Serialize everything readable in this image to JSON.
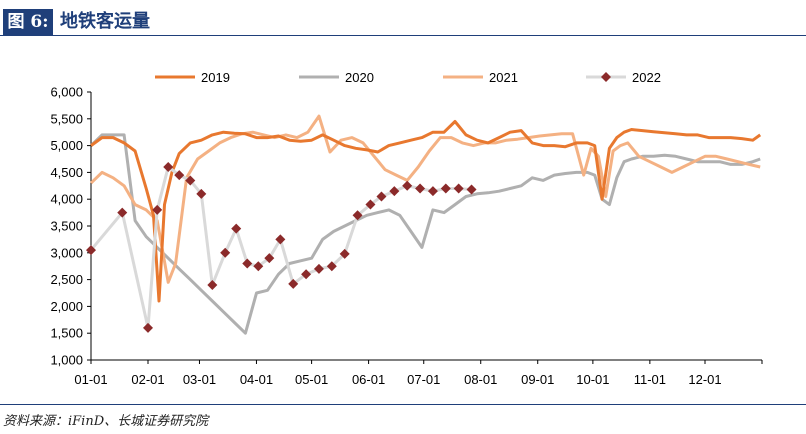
{
  "header": {
    "figure_label": "图 6:",
    "title": "地铁客运量"
  },
  "source": "资料来源：iFinD、长城证券研究院",
  "colors": {
    "2019": "#e8782f",
    "2020": "#b0b0b0",
    "2021": "#f4b183",
    "2022_line": "#d9d9d9",
    "2022_marker": "#8b2a2a",
    "header": "#1f3f7a"
  },
  "chart_data": {
    "type": "line",
    "title": "",
    "xlabel": "",
    "ylabel": "",
    "ylim": [
      1000,
      6000
    ],
    "xlim": [
      1,
      366
    ],
    "y_ticks": [
      1000,
      1500,
      2000,
      2500,
      3000,
      3500,
      4000,
      4500,
      5000,
      5500,
      6000
    ],
    "y_tick_labels": [
      "1,000",
      "1,500",
      "2,000",
      "2,500",
      "3,000",
      "3,500",
      "4,000",
      "4,500",
      "5,000",
      "5,500",
      "6,000"
    ],
    "x_ticks": [
      1,
      32,
      60,
      91,
      121,
      152,
      182,
      213,
      244,
      274,
      305,
      335
    ],
    "x_tick_labels": [
      "01-01",
      "02-01",
      "03-01",
      "04-01",
      "05-01",
      "06-01",
      "07-01",
      "08-01",
      "09-01",
      "10-01",
      "11-01",
      "12-01"
    ],
    "legend_position": "top",
    "series": [
      {
        "name": "2019",
        "marker": false,
        "x": [
          1,
          7,
          13,
          19,
          25,
          31,
          35,
          38,
          41,
          45,
          49,
          55,
          61,
          67,
          73,
          79,
          85,
          91,
          97,
          103,
          109,
          115,
          121,
          127,
          133,
          139,
          145,
          151,
          157,
          163,
          169,
          175,
          181,
          187,
          193,
          199,
          205,
          211,
          217,
          223,
          229,
          235,
          241,
          247,
          253,
          259,
          265,
          271,
          275,
          279,
          283,
          287,
          291,
          295,
          301,
          307,
          313,
          319,
          325,
          331,
          337,
          343,
          349,
          355,
          361,
          365
        ],
        "y": [
          5000,
          5150,
          5150,
          5050,
          4900,
          4200,
          3700,
          2100,
          3900,
          4500,
          4850,
          5050,
          5100,
          5200,
          5250,
          5230,
          5220,
          5150,
          5150,
          5180,
          5100,
          5080,
          5100,
          5200,
          5100,
          5000,
          4950,
          4920,
          4880,
          5000,
          5050,
          5100,
          5150,
          5250,
          5250,
          5450,
          5200,
          5100,
          5050,
          5150,
          5250,
          5280,
          5050,
          5000,
          5000,
          4980,
          5050,
          5050,
          5000,
          4000,
          4950,
          5150,
          5250,
          5300,
          5280,
          5260,
          5240,
          5220,
          5200,
          5200,
          5150,
          5150,
          5150,
          5130,
          5100,
          5200
        ]
      },
      {
        "name": "2020",
        "marker": false,
        "x": [
          1,
          7,
          13,
          19,
          25,
          31,
          37,
          43,
          49,
          55,
          61,
          67,
          73,
          79,
          85,
          91,
          97,
          103,
          109,
          115,
          121,
          127,
          133,
          139,
          145,
          151,
          157,
          163,
          169,
          175,
          181,
          187,
          193,
          199,
          205,
          211,
          217,
          223,
          229,
          235,
          241,
          247,
          253,
          259,
          265,
          271,
          275,
          279,
          283,
          287,
          291,
          295,
          301,
          307,
          313,
          319,
          325,
          331,
          337,
          343,
          349,
          355,
          361,
          365
        ],
        "y": [
          5000,
          5200,
          5200,
          5200,
          3600,
          3300,
          3100,
          2900,
          2700,
          2500,
          2300,
          2100,
          1900,
          1700,
          1500,
          2250,
          2300,
          2600,
          2800,
          2850,
          2900,
          3250,
          3400,
          3500,
          3600,
          3700,
          3750,
          3800,
          3700,
          3400,
          3100,
          3800,
          3750,
          3900,
          4050,
          4100,
          4120,
          4150,
          4200,
          4250,
          4400,
          4350,
          4450,
          4480,
          4500,
          4500,
          4450,
          4000,
          3900,
          4400,
          4700,
          4750,
          4800,
          4800,
          4820,
          4800,
          4750,
          4700,
          4700,
          4700,
          4650,
          4650,
          4700,
          4750
        ]
      },
      {
        "name": "2021",
        "marker": false,
        "x": [
          1,
          7,
          13,
          19,
          25,
          31,
          37,
          43,
          47,
          53,
          59,
          65,
          71,
          77,
          83,
          89,
          95,
          101,
          107,
          113,
          119,
          125,
          131,
          137,
          143,
          149,
          155,
          161,
          167,
          173,
          179,
          185,
          191,
          197,
          203,
          209,
          215,
          221,
          227,
          233,
          239,
          245,
          251,
          257,
          263,
          269,
          273,
          277,
          281,
          285,
          289,
          293,
          299,
          305,
          311,
          317,
          323,
          329,
          335,
          341,
          347,
          353,
          359,
          365
        ],
        "y": [
          4300,
          4500,
          4400,
          4250,
          3900,
          3800,
          3600,
          2450,
          2800,
          4400,
          4750,
          4900,
          5050,
          5150,
          5220,
          5250,
          5200,
          5150,
          5200,
          5150,
          5250,
          5550,
          4880,
          5100,
          5150,
          5050,
          4800,
          4550,
          4450,
          4350,
          4600,
          4900,
          5150,
          5150,
          5050,
          5000,
          5050,
          5050,
          5100,
          5120,
          5150,
          5180,
          5200,
          5220,
          5220,
          4450,
          4950,
          4800,
          4050,
          4900,
          5000,
          5050,
          4800,
          4700,
          4600,
          4500,
          4600,
          4700,
          4800,
          4800,
          4750,
          4700,
          4650,
          4600
        ]
      },
      {
        "name": "2022",
        "marker": true,
        "x": [
          1,
          18,
          32,
          37,
          43,
          49,
          55,
          61,
          67,
          74,
          80,
          86,
          92,
          98,
          104,
          111,
          118,
          125,
          132,
          139,
          146,
          153,
          159,
          166,
          173,
          180,
          187,
          194,
          201,
          208
        ],
        "y": [
          3050,
          3750,
          1600,
          3800,
          4600,
          4450,
          4350,
          4100,
          2400,
          3000,
          3450,
          2800,
          2750,
          2900,
          3250,
          2420,
          2600,
          2700,
          2750,
          2980,
          3700,
          3900,
          4050,
          4150,
          4250,
          4200,
          4150,
          4200,
          4200,
          4180
        ]
      }
    ]
  }
}
